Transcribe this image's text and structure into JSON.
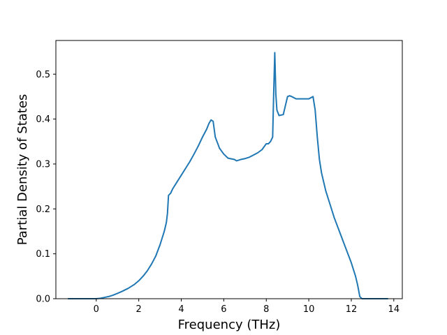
{
  "chart_data": {
    "type": "line",
    "title": "",
    "xlabel": "Frequency (THz)",
    "ylabel": "Partial Density of States",
    "xlim": [
      -1.9,
      14.4
    ],
    "ylim": [
      0.0,
      0.575
    ],
    "xticks": [
      0,
      2,
      4,
      6,
      8,
      10,
      12,
      14
    ],
    "xtick_labels": [
      "0",
      "2",
      "4",
      "6",
      "8",
      "10",
      "12",
      "14"
    ],
    "yticks": [
      0.0,
      0.1,
      0.2,
      0.3,
      0.4,
      0.5
    ],
    "ytick_labels": [
      "0.0",
      "0.1",
      "0.2",
      "0.3",
      "0.4",
      "0.5"
    ],
    "grid": false,
    "legend": "none",
    "series": [
      {
        "color": "#1f77b4",
        "x": [
          -1.3,
          -0.5,
          0.0,
          0.2,
          0.4,
          0.6,
          0.8,
          1.0,
          1.2,
          1.5,
          1.8,
          2.0,
          2.2,
          2.4,
          2.6,
          2.8,
          3.0,
          3.1,
          3.2,
          3.3,
          3.35,
          3.4,
          3.5,
          3.6,
          3.8,
          4.0,
          4.2,
          4.4,
          4.6,
          4.8,
          5.0,
          5.2,
          5.3,
          5.4,
          5.5,
          5.6,
          5.8,
          6.0,
          6.2,
          6.4,
          6.5,
          6.6,
          6.8,
          7.0,
          7.2,
          7.4,
          7.6,
          7.8,
          8.0,
          8.1,
          8.2,
          8.3,
          8.35,
          8.4,
          8.45,
          8.5,
          8.6,
          8.8,
          9.0,
          9.1,
          9.2,
          9.4,
          9.6,
          9.8,
          10.0,
          10.2,
          10.3,
          10.4,
          10.5,
          10.6,
          10.8,
          11.0,
          11.2,
          11.4,
          11.6,
          11.8,
          12.0,
          12.2,
          12.3,
          12.4,
          12.5,
          13.0,
          13.7
        ],
        "y": [
          0.0,
          0.0,
          0.0,
          0.001,
          0.003,
          0.005,
          0.008,
          0.012,
          0.016,
          0.023,
          0.032,
          0.04,
          0.05,
          0.062,
          0.077,
          0.095,
          0.12,
          0.135,
          0.15,
          0.17,
          0.19,
          0.23,
          0.235,
          0.245,
          0.26,
          0.275,
          0.29,
          0.305,
          0.322,
          0.34,
          0.36,
          0.378,
          0.39,
          0.398,
          0.395,
          0.36,
          0.335,
          0.322,
          0.313,
          0.311,
          0.31,
          0.307,
          0.31,
          0.312,
          0.315,
          0.32,
          0.325,
          0.332,
          0.345,
          0.345,
          0.35,
          0.36,
          0.46,
          0.548,
          0.455,
          0.42,
          0.408,
          0.41,
          0.45,
          0.452,
          0.45,
          0.445,
          0.445,
          0.445,
          0.445,
          0.45,
          0.42,
          0.36,
          0.31,
          0.28,
          0.24,
          0.21,
          0.18,
          0.155,
          0.13,
          0.105,
          0.08,
          0.05,
          0.03,
          0.005,
          0.0,
          0.0,
          0.0
        ]
      }
    ]
  }
}
